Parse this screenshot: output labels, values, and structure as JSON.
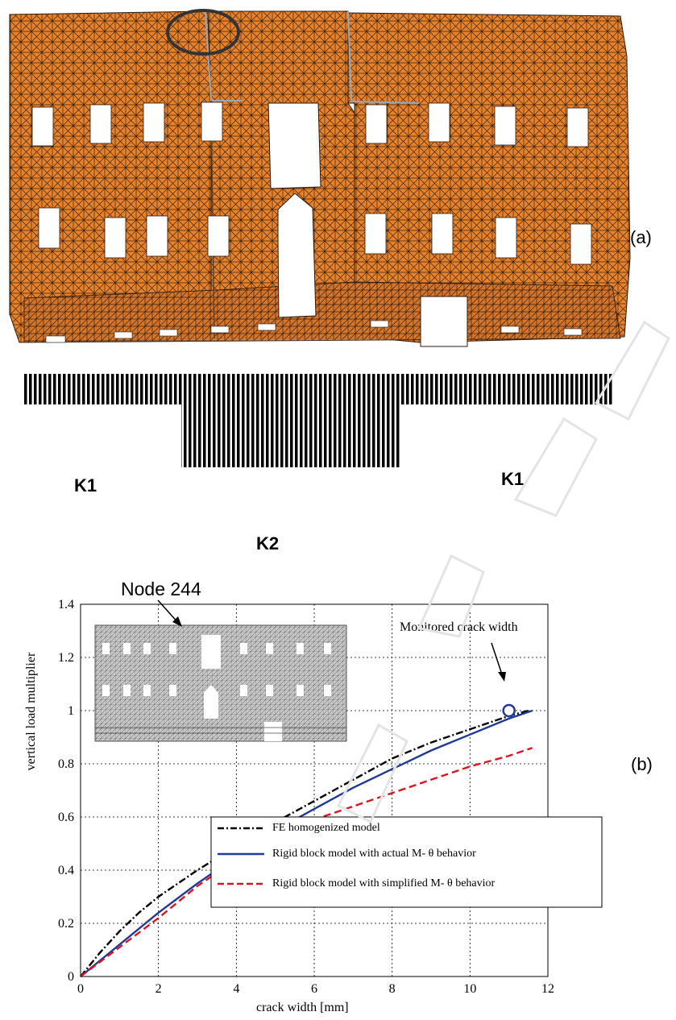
{
  "panel_a": {
    "tag": "(a)",
    "soil_labels": {
      "left": "K1",
      "right": "K1",
      "center": "K2"
    },
    "colors": {
      "mesh_fill": "#e8822a",
      "mesh_line": "#2a1a10",
      "openings": "#ffffff"
    }
  },
  "panel_b": {
    "tag": "(b)",
    "inset_annotation": "Node 244",
    "point_annotation": "Monitored crack width"
  },
  "chart_data": {
    "type": "line",
    "xlabel": "crack width [mm]",
    "ylabel": "vertical load multiplier",
    "xlim": [
      0,
      12
    ],
    "ylim": [
      0,
      1.4
    ],
    "xticks": [
      0,
      2,
      4,
      6,
      8,
      10,
      12
    ],
    "yticks": [
      0,
      0.2,
      0.4,
      0.6,
      0.8,
      1,
      1.2,
      1.4
    ],
    "grid": true,
    "legend_position": "bottom-right",
    "series": [
      {
        "name": "FE homogenized model",
        "color": "#000000",
        "style": "dashdot",
        "x": [
          0,
          0.5,
          1,
          1.5,
          2,
          3,
          4,
          5,
          6,
          7,
          8,
          9,
          10,
          11,
          11.5
        ],
        "y": [
          0,
          0.09,
          0.17,
          0.24,
          0.3,
          0.4,
          0.49,
          0.58,
          0.66,
          0.74,
          0.82,
          0.88,
          0.93,
          0.98,
          1.0
        ]
      },
      {
        "name": "Rigid block model with actual M- θ behavior",
        "color": "#1f3a93",
        "style": "solid",
        "x": [
          0,
          1,
          2,
          3,
          4,
          5,
          6,
          7,
          8,
          9,
          10,
          11,
          11.6
        ],
        "y": [
          0,
          0.12,
          0.24,
          0.35,
          0.45,
          0.55,
          0.63,
          0.71,
          0.78,
          0.85,
          0.91,
          0.97,
          1.0
        ]
      },
      {
        "name": "Rigid block model with simplified M- θ behavior",
        "color": "#e0141e",
        "style": "dashed",
        "x": [
          0,
          1,
          2,
          3,
          4,
          5,
          6,
          7,
          8,
          9,
          10,
          11,
          11.6
        ],
        "y": [
          0,
          0.11,
          0.22,
          0.34,
          0.44,
          0.54,
          0.59,
          0.64,
          0.69,
          0.74,
          0.79,
          0.83,
          0.86
        ]
      }
    ],
    "marker": {
      "x": 11.0,
      "y": 1.0,
      "color": "#1f3a93"
    }
  }
}
